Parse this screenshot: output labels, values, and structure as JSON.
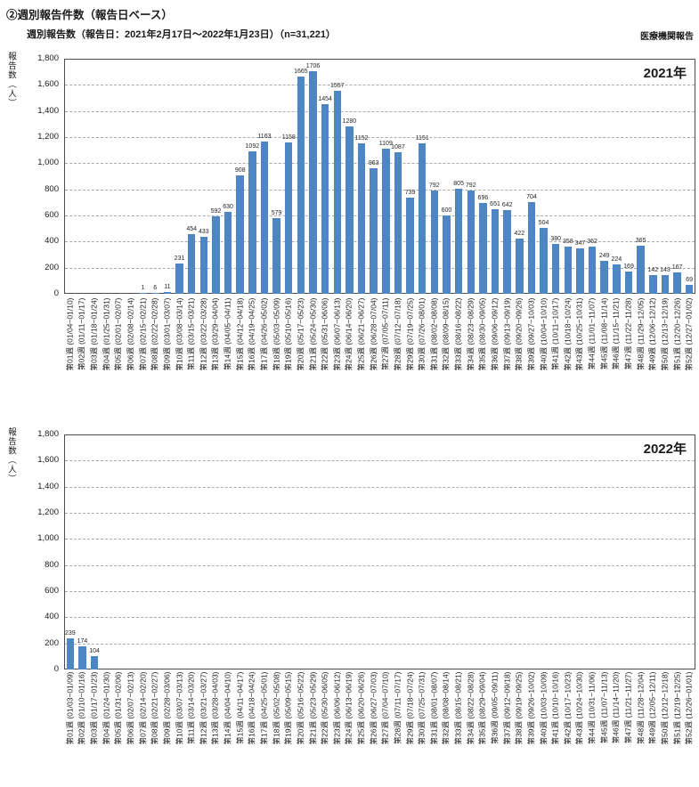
{
  "header": {
    "title": "②週別報告件数（報告日ベース）",
    "subtitle": "週別報告数（報告日：2021年2月17日～2022年1月23日）（n=31,221）",
    "right_note": "医療機関報告"
  },
  "chart_data": [
    {
      "type": "bar",
      "title": "2021年",
      "ylabel": "報告数（人）",
      "ylim": [
        0,
        1800
      ],
      "ytick_interval": 200,
      "yticks": [
        "0",
        "200",
        "400",
        "600",
        "800",
        "1,000",
        "1,200",
        "1,400",
        "1,600",
        "1,800"
      ],
      "grid": "horizontal-dashed",
      "legend": "none",
      "bar_color": "#4E86C4",
      "categories": [
        "第01週 (01/04~01/10)",
        "第02週 (01/11~01/17)",
        "第03週 (01/18~01/24)",
        "第04週 (01/25~01/31)",
        "第05週 (02/01~02/07)",
        "第06週 (02/08~02/14)",
        "第07週 (02/15~02/21)",
        "第08週 (02/22~02/28)",
        "第09週 (03/01~03/07)",
        "第10週 (03/08~03/14)",
        "第11週 (03/15~03/21)",
        "第12週 (03/22~03/28)",
        "第13週 (03/29~04/04)",
        "第14週 (04/05~04/11)",
        "第15週 (04/12~04/18)",
        "第16週 (04/19~04/25)",
        "第17週 (04/26~05/02)",
        "第18週 (05/03~05/09)",
        "第19週 (05/10~05/16)",
        "第20週 (05/17~05/23)",
        "第21週 (05/24~05/30)",
        "第22週 (05/31~06/06)",
        "第23週 (06/07~06/13)",
        "第24週 (06/14~06/20)",
        "第25週 (06/21~06/27)",
        "第26週 (06/28~07/04)",
        "第27週 (07/05~07/11)",
        "第28週 (07/12~07/18)",
        "第29週 (07/19~07/25)",
        "第30週 (07/26~08/01)",
        "第31週 (08/02~08/08)",
        "第32週 (08/09~08/15)",
        "第33週 (08/16~08/22)",
        "第34週 (08/23~08/29)",
        "第35週 (08/30~09/05)",
        "第36週 (09/06~09/12)",
        "第37週 (09/13~09/19)",
        "第38週 (09/20~09/26)",
        "第39週 (09/27~10/03)",
        "第40週 (10/04~10/10)",
        "第41週 (10/11~10/17)",
        "第42週 (10/18~10/24)",
        "第43週 (10/25~10/31)",
        "第44週 (11/01~11/07)",
        "第45週 (11/08~11/14)",
        "第46週 (11/15~11/21)",
        "第47週 (11/22~11/28)",
        "第48週 (11/29~12/05)",
        "第49週 (12/06~12/12)",
        "第50週 (12/13~12/19)",
        "第51週 (12/20~12/26)",
        "第52週 (12/27~01/02)"
      ],
      "values": [
        0,
        0,
        0,
        0,
        0,
        0,
        1,
        6,
        11,
        231,
        454,
        433,
        592,
        630,
        908,
        1092,
        1163,
        579,
        1158,
        1665,
        1706,
        1454,
        1557,
        1280,
        1152,
        963,
        1109,
        1087,
        739,
        1151,
        792,
        600,
        805,
        792,
        696,
        651,
        642,
        422,
        704,
        504,
        380,
        358,
        347,
        362,
        249,
        224,
        169,
        365,
        142,
        143,
        167,
        69
      ]
    },
    {
      "type": "bar",
      "title": "2022年",
      "ylabel": "報告数（人）",
      "ylim": [
        0,
        1800
      ],
      "ytick_interval": 200,
      "yticks": [
        "0",
        "200",
        "400",
        "600",
        "800",
        "1,000",
        "1,200",
        "1,400",
        "1,600",
        "1,800"
      ],
      "grid": "horizontal-dashed",
      "legend": "none",
      "bar_color": "#4E86C4",
      "categories": [
        "第01週 (01/03~01/09)",
        "第02週 (01/10~01/16)",
        "第03週 (01/17~01/23)",
        "第04週 (01/24~01/30)",
        "第05週 (01/31~02/06)",
        "第06週 (02/07~02/13)",
        "第07週 (02/14~02/20)",
        "第08週 (02/21~02/27)",
        "第09週 (02/28~03/06)",
        "第10週 (03/07~03/13)",
        "第11週 (03/14~03/20)",
        "第12週 (03/21~03/27)",
        "第13週 (03/28~04/03)",
        "第14週 (04/04~04/10)",
        "第15週 (04/11~04/17)",
        "第16週 (04/18~04/24)",
        "第17週 (04/25~05/01)",
        "第18週 (05/02~05/08)",
        "第19週 (05/09~05/15)",
        "第20週 (05/16~05/22)",
        "第21週 (05/23~05/29)",
        "第22週 (05/30~06/05)",
        "第23週 (06/06~06/12)",
        "第24週 (06/13~06/19)",
        "第25週 (06/20~06/26)",
        "第26週 (06/27~07/03)",
        "第27週 (07/04~07/10)",
        "第28週 (07/11~07/17)",
        "第29週 (07/18~07/24)",
        "第30週 (07/25~07/31)",
        "第31週 (08/01~08/07)",
        "第32週 (08/08~08/14)",
        "第33週 (08/15~08/21)",
        "第34週 (08/22~08/28)",
        "第35週 (08/29~09/04)",
        "第36週 (09/05~09/11)",
        "第37週 (09/12~09/18)",
        "第38週 (09/19~09/25)",
        "第39週 (09/26~10/02)",
        "第40週 (10/03~10/09)",
        "第41週 (10/10~10/16)",
        "第42週 (10/17~10/23)",
        "第43週 (10/24~10/30)",
        "第44週 (10/31~11/06)",
        "第45週 (11/07~11/13)",
        "第46週 (11/14~11/20)",
        "第47週 (11/21~11/27)",
        "第48週 (11/28~12/04)",
        "第49週 (12/05~12/11)",
        "第50週 (12/12~12/18)",
        "第51週 (12/19~12/25)",
        "第52週 (12/26~01/01)"
      ],
      "values": [
        239,
        174,
        104,
        0,
        0,
        0,
        0,
        0,
        0,
        0,
        0,
        0,
        0,
        0,
        0,
        0,
        0,
        0,
        0,
        0,
        0,
        0,
        0,
        0,
        0,
        0,
        0,
        0,
        0,
        0,
        0,
        0,
        0,
        0,
        0,
        0,
        0,
        0,
        0,
        0,
        0,
        0,
        0,
        0,
        0,
        0,
        0,
        0,
        0,
        0,
        0,
        0
      ]
    }
  ]
}
